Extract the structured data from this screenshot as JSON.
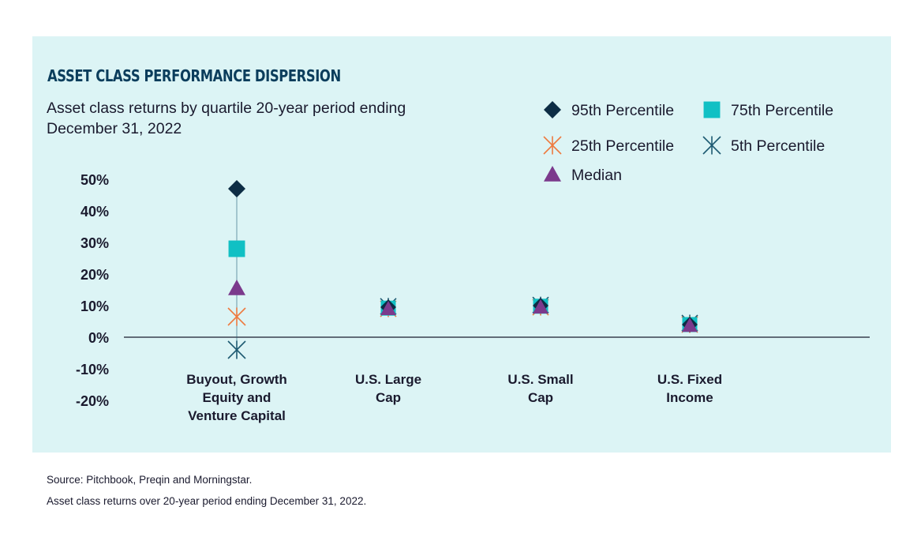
{
  "title": "ASSET CLASS PERFORMANCE DISPERSION",
  "subtitle": "Asset class returns by quartile 20-year period ending December 31, 2022",
  "source_note": "Source: Pitchbook, Preqin and Morningstar.",
  "footnote": "Asset class returns over 20-year period ending December 31, 2022.",
  "colors": {
    "panel": "#dcf4f5",
    "p95": "#0d2d45",
    "p75": "#11c0c4",
    "p25": "#ee7a3f",
    "p5": "#1e5a72",
    "median": "#7b3a8c",
    "axis": "#1a1a2e"
  },
  "chart_data": {
    "type": "scatter",
    "categories": [
      [
        "Buyout, Growth",
        "Equity and",
        "Venture Capital"
      ],
      [
        "U.S. Large",
        "Cap"
      ],
      [
        "U.S. Small",
        "Cap"
      ],
      [
        "U.S. Fixed",
        "Income"
      ]
    ],
    "yticks": [
      "50%",
      "40%",
      "30%",
      "20%",
      "10%",
      "0%",
      "-10%",
      "-20%"
    ],
    "ylim": [
      -20,
      50
    ],
    "series": [
      {
        "name": "95th Percentile",
        "marker": "diamond",
        "color_key": "p95",
        "values": [
          47,
          9.5,
          10,
          4
        ]
      },
      {
        "name": "75th Percentile",
        "marker": "square",
        "color_key": "p75",
        "values": [
          28,
          9.2,
          9.8,
          4
        ]
      },
      {
        "name": "25th Percentile",
        "marker": "x",
        "color_key": "p25",
        "values": [
          6.5,
          9,
          9.5,
          4
        ]
      },
      {
        "name": "5th Percentile",
        "marker": "asterisk",
        "color_key": "p5",
        "values": [
          -4,
          9.8,
          10.2,
          4.5
        ]
      },
      {
        "name": "Median",
        "marker": "triangle",
        "color_key": "median",
        "values": [
          15.5,
          9,
          9.5,
          3.7
        ]
      }
    ],
    "legend_position": "top-right",
    "grid": false
  }
}
